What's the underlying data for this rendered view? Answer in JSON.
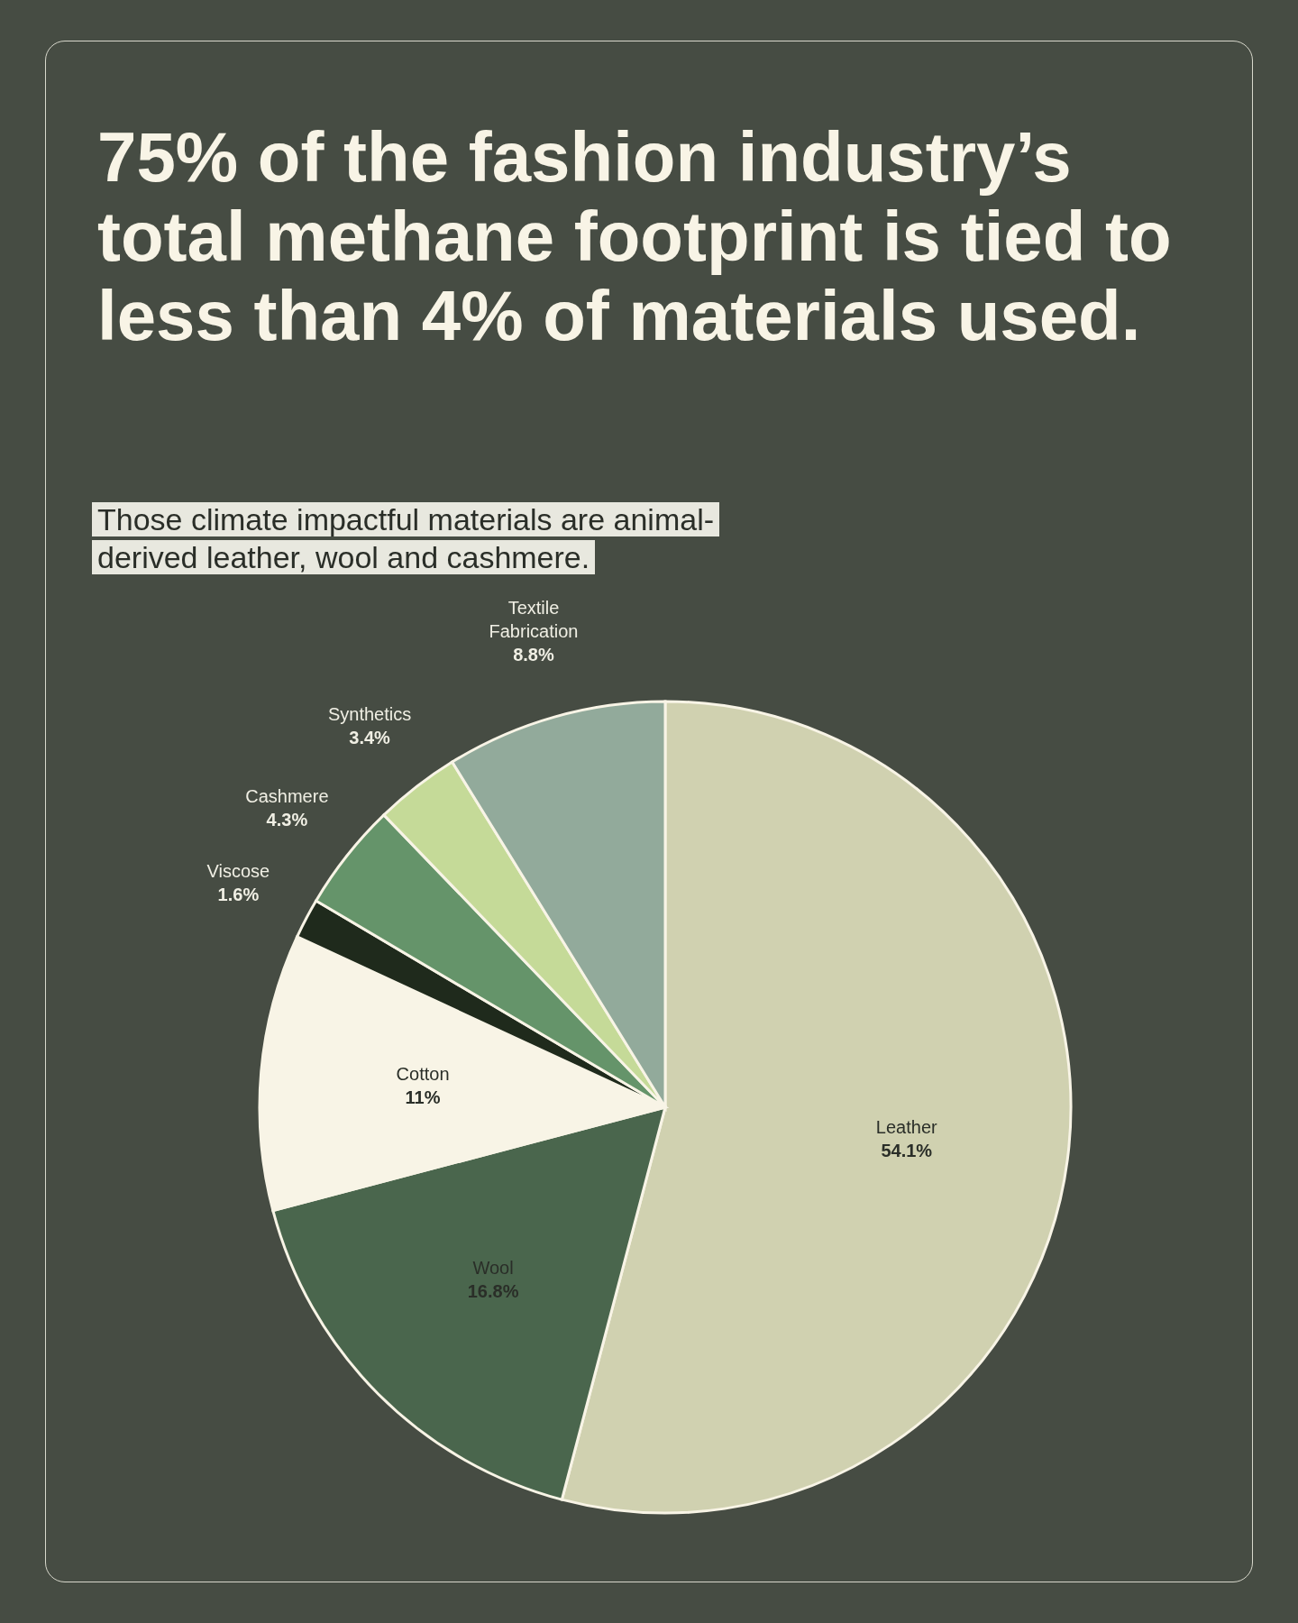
{
  "chart_data": {
    "type": "pie",
    "title": "75% of the fashion industry’s total methane footprint is tied to less than 4% of materials used.",
    "subtitle": "Those climate impactful materials are animal-derived leather, wool and cashmere.",
    "categories": [
      "Leather",
      "Wool",
      "Cotton",
      "Viscose",
      "Cashmere",
      "Synthetics",
      "Textile Fabrication"
    ],
    "values": [
      54.1,
      16.8,
      11,
      1.6,
      4.3,
      3.4,
      8.8
    ],
    "value_labels": [
      "54.1%",
      "16.8%",
      "11%",
      "1.6%",
      "4.3%",
      "3.4%",
      "8.8%"
    ],
    "colors": [
      "#d0d1b0",
      "#4a664d",
      "#f8f4e6",
      "#1f2a1c",
      "#65946a",
      "#c5da98",
      "#92aa9b"
    ],
    "legend": false
  }
}
